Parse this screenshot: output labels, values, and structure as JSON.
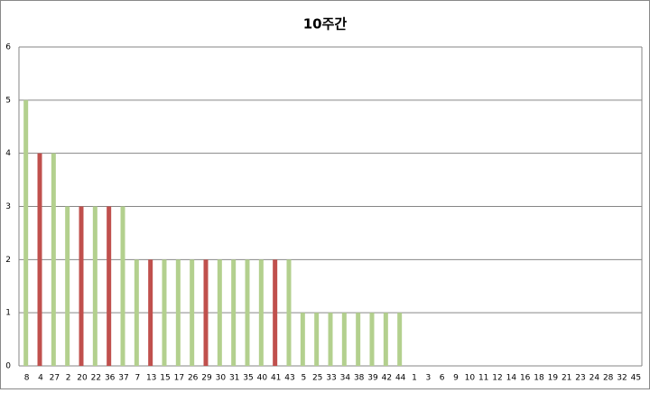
{
  "chart_data": {
    "type": "bar",
    "title": "10주간",
    "categories": [
      "8",
      "4",
      "27",
      "2",
      "20",
      "22",
      "36",
      "37",
      "7",
      "13",
      "15",
      "17",
      "26",
      "29",
      "30",
      "31",
      "35",
      "40",
      "41",
      "43",
      "5",
      "25",
      "33",
      "34",
      "38",
      "39",
      "42",
      "44",
      "1",
      "3",
      "6",
      "9",
      "10",
      "11",
      "12",
      "14",
      "16",
      "18",
      "19",
      "21",
      "23",
      "24",
      "28",
      "32",
      "45"
    ],
    "values": [
      5,
      4,
      4,
      3,
      3,
      3,
      3,
      3,
      2,
      2,
      2,
      2,
      2,
      2,
      2,
      2,
      2,
      2,
      2,
      2,
      1,
      1,
      1,
      1,
      1,
      1,
      1,
      1,
      0,
      0,
      0,
      0,
      0,
      0,
      0,
      0,
      0,
      0,
      0,
      0,
      0,
      0,
      0,
      0,
      0
    ],
    "colors": [
      "#b3d08e",
      "#c0504d",
      "#b3d08e",
      "#b3d08e",
      "#c0504d",
      "#b3d08e",
      "#c0504d",
      "#b3d08e",
      "#b3d08e",
      "#c0504d",
      "#b3d08e",
      "#b3d08e",
      "#b3d08e",
      "#c0504d",
      "#b3d08e",
      "#b3d08e",
      "#b3d08e",
      "#b3d08e",
      "#c0504d",
      "#b3d08e",
      "#b3d08e",
      "#b3d08e",
      "#b3d08e",
      "#b3d08e",
      "#b3d08e",
      "#b3d08e",
      "#b3d08e",
      "#b3d08e",
      "#b3d08e",
      "#b3d08e",
      "#b3d08e",
      "#b3d08e",
      "#b3d08e",
      "#b3d08e",
      "#b3d08e",
      "#b3d08e",
      "#b3d08e",
      "#b3d08e",
      "#b3d08e",
      "#b3d08e",
      "#b3d08e",
      "#b3d08e",
      "#b3d08e",
      "#b3d08e",
      "#b3d08e"
    ],
    "ylim": [
      0,
      6
    ],
    "yticks": [
      0,
      1,
      2,
      3,
      4,
      5,
      6
    ],
    "grid": true
  }
}
